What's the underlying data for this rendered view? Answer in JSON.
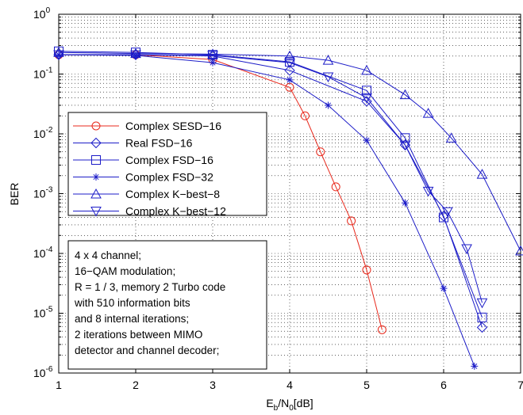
{
  "chart_data": {
    "type": "line",
    "xlabel": {
      "base": "E",
      "sub1": "b",
      "mid": "/N",
      "sub2": "0",
      "tail": "[dB]"
    },
    "ylabel": "BER",
    "xlim": [
      1,
      7
    ],
    "ylim": [
      1e-06,
      1
    ],
    "yscale": "log",
    "grid": true,
    "x_ticks": [
      "1",
      "2",
      "3",
      "4",
      "5",
      "6",
      "7"
    ],
    "y_ticks": [
      {
        "value": 1,
        "base": "10",
        "exp": "0"
      },
      {
        "value": 0.1,
        "base": "10",
        "exp": "-1"
      },
      {
        "value": 0.01,
        "base": "10",
        "exp": "-2"
      },
      {
        "value": 0.001,
        "base": "10",
        "exp": "-3"
      },
      {
        "value": 0.0001,
        "base": "10",
        "exp": "-4"
      },
      {
        "value": 1e-05,
        "base": "10",
        "exp": "-5"
      },
      {
        "value": 1e-06,
        "base": "10",
        "exp": "-6"
      }
    ],
    "legend_position": "center-left",
    "series": [
      {
        "name": "Complex SESD−16",
        "color": "#e8291c",
        "marker": "circle",
        "x": [
          1,
          2,
          3,
          4,
          4.2,
          4.4,
          4.6,
          4.8,
          5.0,
          5.2
        ],
        "y": [
          0.21,
          0.21,
          0.175,
          0.06,
          0.02,
          0.005,
          0.0013,
          0.00035,
          5.3e-05,
          5.3e-06
        ]
      },
      {
        "name": "Real FSD−16",
        "color": "#1c1cc8",
        "marker": "diamond",
        "x": [
          1,
          2,
          3,
          4,
          5,
          5.5,
          6,
          6.5
        ],
        "y": [
          0.21,
          0.21,
          0.2,
          0.115,
          0.035,
          0.0065,
          0.00042,
          5.8e-06
        ]
      },
      {
        "name": "Complex FSD−16",
        "color": "#1c1cc8",
        "marker": "square",
        "x": [
          1,
          2,
          3,
          4,
          5,
          5.5,
          6,
          6.5
        ],
        "y": [
          0.24,
          0.23,
          0.21,
          0.16,
          0.053,
          0.0085,
          0.0004,
          8.5e-06
        ]
      },
      {
        "name": "Complex FSD−32",
        "color": "#1c1cc8",
        "marker": "star",
        "x": [
          1,
          2,
          3,
          4,
          4.5,
          5,
          5.5,
          6,
          6.4
        ],
        "y": [
          0.21,
          0.205,
          0.155,
          0.08,
          0.03,
          0.0078,
          0.0007,
          2.6e-05,
          1.3e-06
        ]
      },
      {
        "name": "Complex K−best−8",
        "color": "#1c1cc8",
        "marker": "triangle-up",
        "x": [
          1,
          2,
          3,
          4,
          4.5,
          5,
          5.5,
          5.8,
          6.1,
          6.5,
          7
        ],
        "y": [
          0.23,
          0.22,
          0.215,
          0.2,
          0.17,
          0.115,
          0.045,
          0.022,
          0.0085,
          0.0021,
          0.00011
        ]
      },
      {
        "name": "Complex K−best−12",
        "color": "#1c1cc8",
        "marker": "triangle-down",
        "x": [
          1,
          2,
          3,
          4,
          4.5,
          5,
          5.5,
          5.8,
          6.05,
          6.3,
          6.5
        ],
        "y": [
          0.21,
          0.21,
          0.205,
          0.155,
          0.09,
          0.04,
          0.0065,
          0.0011,
          0.0005,
          0.00012,
          1.5e-05
        ]
      }
    ],
    "annotation": [
      "4 x 4 channel;",
      "16−QAM modulation;",
      "R = 1 / 3, memory 2 Turbo code",
      "with 510 information bits",
      "and 8 internal iterations;",
      "2 iterations between MIMO",
      "detector and channel decoder;"
    ]
  }
}
